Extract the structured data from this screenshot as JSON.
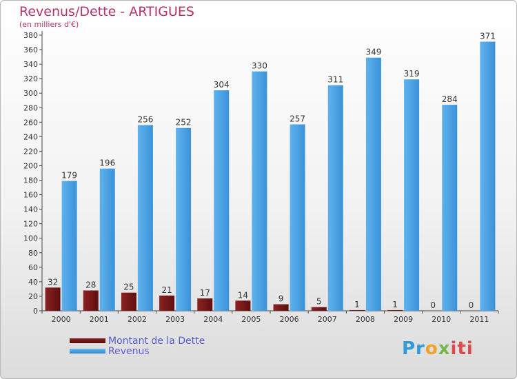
{
  "header": {
    "title": "Revenus/Dette - ARTIGUES",
    "subtitle": "(en milliers d'€)"
  },
  "chart_data": {
    "type": "bar",
    "title": "Revenus/Dette - ARTIGUES",
    "ylabel": "(en milliers d'€)",
    "xlabel": "",
    "ylim": [
      0,
      380
    ],
    "ytick_step": 20,
    "grid": false,
    "legend_position": "bottom-left",
    "categories": [
      "2000",
      "2001",
      "2002",
      "2003",
      "2004",
      "2005",
      "2006",
      "2007",
      "2008",
      "2009",
      "2010",
      "2011"
    ],
    "series": [
      {
        "name": "Montant de la Dette",
        "color": "#7a1c1c",
        "values": [
          32,
          28,
          25,
          21,
          17,
          14,
          9,
          5,
          1,
          1,
          0,
          0
        ]
      },
      {
        "name": "Revenus",
        "color": "#4aa3e6",
        "values": [
          179,
          196,
          256,
          252,
          304,
          330,
          257,
          311,
          349,
          319,
          284,
          371
        ]
      }
    ]
  },
  "legend": {
    "items": [
      {
        "label": "Montant de la Dette",
        "color": "#6b1212"
      },
      {
        "label": "Revenus",
        "color": "#3f9be0"
      }
    ]
  },
  "logo": {
    "p1": "Pr",
    "p2": "o",
    "p3": "x",
    "p4": "iti"
  }
}
